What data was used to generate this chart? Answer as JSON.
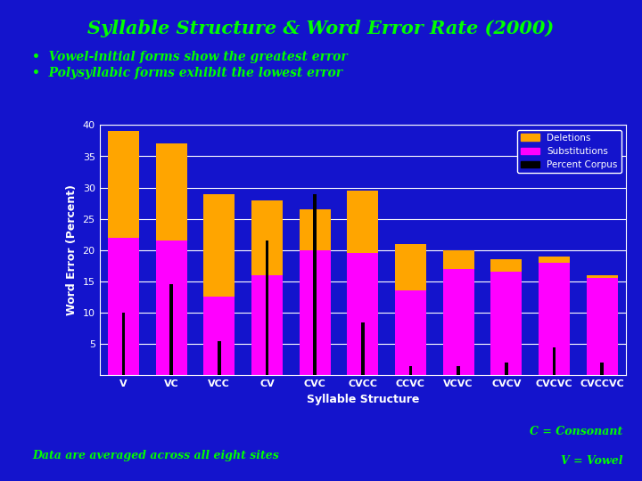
{
  "title": "Syllable Structure & Word Error Rate (2000)",
  "bullet1": "Vowel-initial forms show the greatest error",
  "bullet2": "Polysyllabic forms exhibit the lowest error",
  "xlabel": "Syllable Structure",
  "ylabel": "Word Error (Percent)",
  "background_color": "#1414CC",
  "plot_bg_color": "#1414CC",
  "categories": [
    "V",
    "VC",
    "VCC",
    "CV",
    "CVC",
    "CVCC",
    "CCVC",
    "VCVC",
    "CVCV",
    "CVCVC",
    "CVCCVC"
  ],
  "deletions": [
    17.0,
    15.5,
    16.5,
    12.0,
    6.5,
    10.0,
    7.5,
    3.0,
    2.0,
    1.0,
    0.5
  ],
  "substitutions": [
    22.0,
    21.5,
    12.5,
    16.0,
    20.0,
    19.5,
    13.5,
    17.0,
    16.5,
    18.0,
    15.5
  ],
  "percent_corpus": [
    10.0,
    14.5,
    5.5,
    21.5,
    29.0,
    8.5,
    1.5,
    1.5,
    2.0,
    4.5,
    2.0
  ],
  "deletion_color": "#FFA500",
  "substitution_color": "#FF00FF",
  "corpus_color": "#000000",
  "title_color": "#00FF00",
  "text_color": "#00FF00",
  "label_color": "#FFFFFF",
  "ylim": [
    0,
    40
  ],
  "yticks": [
    5,
    10,
    15,
    20,
    25,
    30,
    35,
    40
  ],
  "bottom_left_note": "Data are averaged across all eight sites",
  "bottom_right_note1": "C = Consonant",
  "bottom_right_note2": "V = Vowel"
}
